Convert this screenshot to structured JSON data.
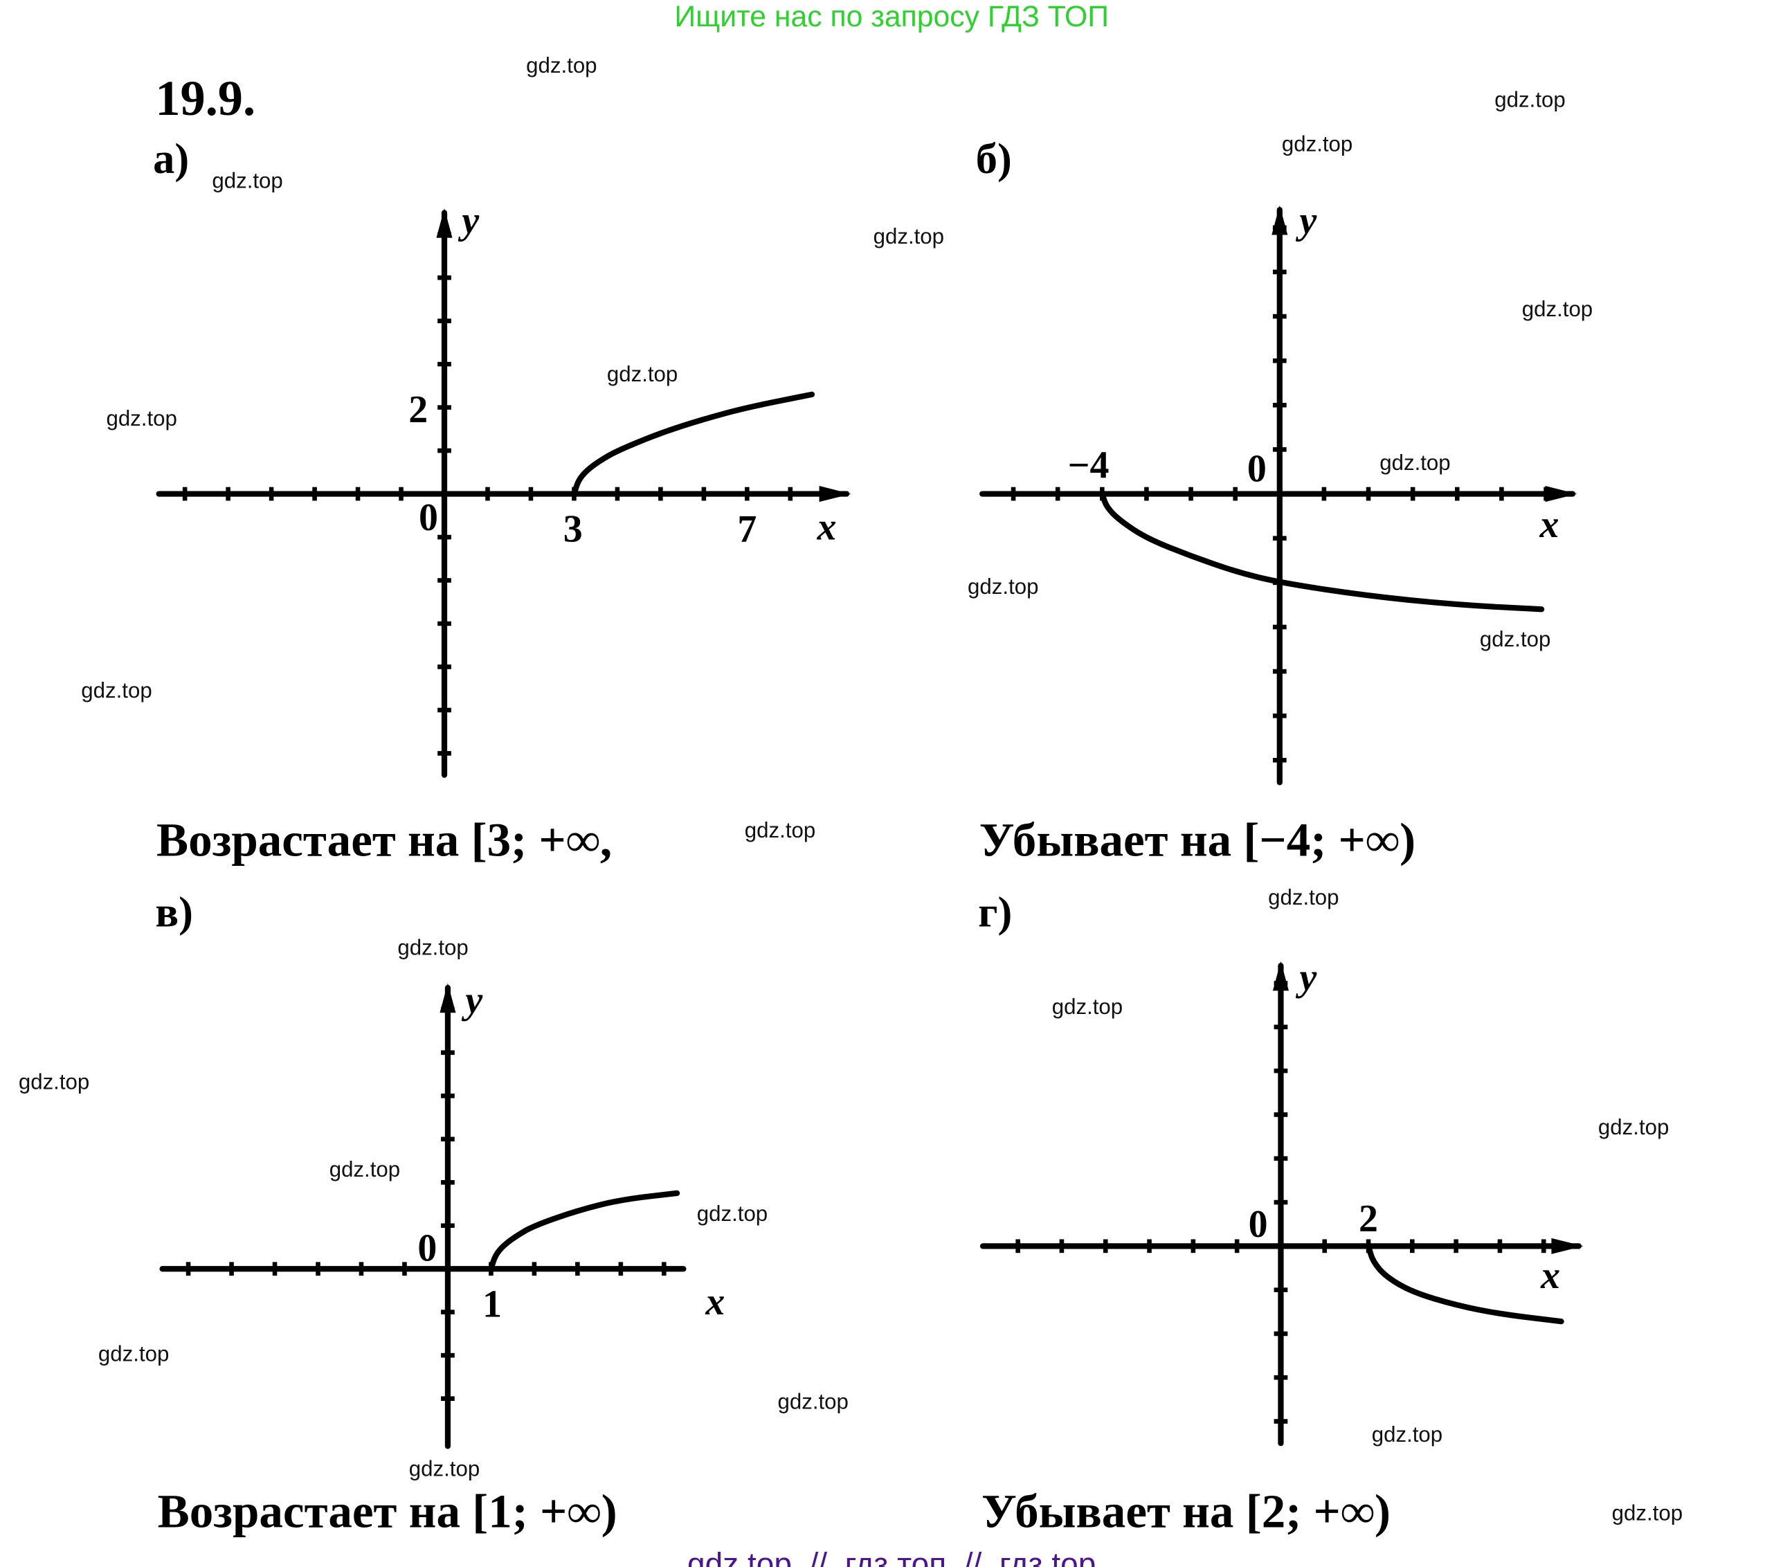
{
  "header": {
    "promo": "Ищите нас по запросу ГДЗ ТОП",
    "promo_color": "#2ed12e"
  },
  "problem_number": "19.9.",
  "parts": [
    {
      "label": "а)",
      "answer": "Возрастает на [3; +∞,"
    },
    {
      "label": "б)",
      "answer": "Убывает на [−4; +∞)"
    },
    {
      "label": "в)",
      "answer": "Возрастает на [1; +∞)"
    },
    {
      "label": "г)",
      "answer": "Убывает на [2; +∞)"
    }
  ],
  "watermark": "gdz.top",
  "watermarks": [
    "gdz.top",
    "gdz.top",
    "gdz.top",
    "gdz.top",
    "gdz.top",
    "gdz.top",
    "gdz.top",
    "gdz.top",
    "gdz.top",
    "gdz.top",
    "gdz.top",
    "gdz.top",
    "gdz.top",
    "gdz.top",
    "gdz.top",
    "gdz.top",
    "gdz.top",
    "gdz.top",
    "gdz.top",
    "gdz.top",
    "gdz.top",
    "gdz.top",
    "gdz.top",
    "gdz.top",
    "gdz.top"
  ],
  "footer": {
    "text": "gdz top  //  гдз топ  //  гдз top",
    "color": "#4b1590"
  },
  "chart_data": [
    {
      "type": "line",
      "title": "а)",
      "xlabel": "x",
      "ylabel": "y",
      "xlim": [
        -6.6,
        9.3
      ],
      "ylim": [
        -6.5,
        6.5
      ],
      "tick_labels": {
        "origin": "0",
        "x": [
          "3",
          "7"
        ],
        "y": [
          "2"
        ]
      },
      "series": [
        {
          "name": "curve",
          "points": [
            [
              3,
              0
            ],
            [
              3.1,
              0.32
            ],
            [
              3.3,
              0.55
            ],
            [
              3.6,
              0.77
            ],
            [
              4,
              1
            ],
            [
              5,
              1.41
            ],
            [
              6,
              1.73
            ],
            [
              7,
              2
            ],
            [
              8.5,
              2.3
            ]
          ]
        }
      ]
    },
    {
      "type": "line",
      "title": "б)",
      "xlabel": "x",
      "ylabel": "y",
      "xlim": [
        -6.7,
        6.6
      ],
      "ylim": [
        -6.5,
        6.4
      ],
      "tick_labels": {
        "origin": "0",
        "x": [
          "−4"
        ],
        "y": []
      },
      "series": [
        {
          "name": "curve",
          "points": [
            [
              -4,
              0
            ],
            [
              -3.9,
              -0.3
            ],
            [
              -3.6,
              -0.6
            ],
            [
              -3,
              -1.0
            ],
            [
              -2,
              -1.4
            ],
            [
              -1,
              -1.75
            ],
            [
              0,
              -2
            ],
            [
              2,
              -2.3
            ],
            [
              4,
              -2.5
            ],
            [
              5.9,
              -2.6
            ]
          ]
        }
      ]
    },
    {
      "type": "line",
      "title": "в)",
      "xlabel": "x",
      "ylabel": "y",
      "xlim": [
        -6.6,
        5.45
      ],
      "ylim": [
        -4.1,
        6.5
      ],
      "tick_labels": {
        "origin": "0",
        "x": [
          "1"
        ],
        "y": []
      },
      "series": [
        {
          "name": "curve",
          "points": [
            [
              1,
              0
            ],
            [
              1.1,
              0.32
            ],
            [
              1.3,
              0.55
            ],
            [
              1.6,
              0.77
            ],
            [
              2,
              1
            ],
            [
              3,
              1.35
            ],
            [
              4,
              1.6
            ],
            [
              5.3,
              1.75
            ]
          ]
        }
      ]
    },
    {
      "type": "line",
      "title": "г)",
      "xlabel": "x",
      "ylabel": "y",
      "xlim": [
        -6.8,
        6.8
      ],
      "ylim": [
        -4.5,
        6.4
      ],
      "tick_labels": {
        "origin": "0",
        "x": [
          "2"
        ],
        "y": []
      },
      "series": [
        {
          "name": "curve",
          "points": [
            [
              2,
              0
            ],
            [
              2.1,
              -0.35
            ],
            [
              2.4,
              -0.7
            ],
            [
              3,
              -1.05
            ],
            [
              4,
              -1.35
            ],
            [
              5,
              -1.55
            ],
            [
              6.4,
              -1.72
            ]
          ]
        }
      ]
    }
  ]
}
